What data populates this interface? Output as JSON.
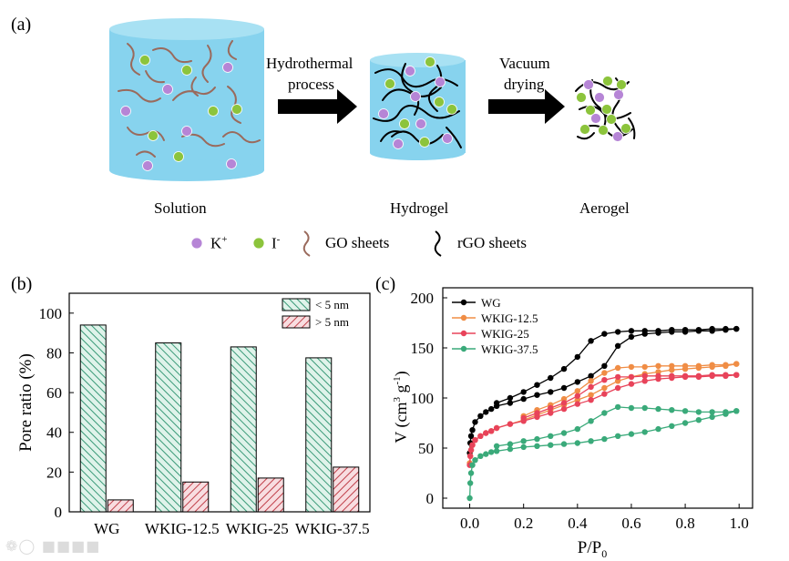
{
  "panel_a": {
    "label": "(a)",
    "arrow1_line1": "Hydrothermal",
    "arrow1_line2": "process",
    "arrow2_line1": "Vacuum",
    "arrow2_line2": "drying",
    "stage1": "Solution",
    "stage2": "Hydrogel",
    "stage3": "Aerogel",
    "legend": {
      "k_ion": "K",
      "k_sup": "+",
      "i_ion": "I",
      "i_sup": "-",
      "go": "GO sheets",
      "rgo": "rGO sheets"
    },
    "colors": {
      "cylinder": "#87d3ee",
      "k_ion": "#b685d6",
      "i_ion": "#8cc43c",
      "go_sheet": "#9a6a5c",
      "rgo_sheet": "#000000"
    }
  },
  "chart_data": [
    {
      "panel": "(b)",
      "type": "bar",
      "categories": [
        "WG",
        "WKIG-12.5",
        "WKIG-25",
        "WKIG-37.5"
      ],
      "series": [
        {
          "name": "< 5 nm",
          "values": [
            94,
            85,
            83,
            77.5
          ],
          "color": "#3a9a78"
        },
        {
          "name": "> 5 nm",
          "values": [
            6,
            15,
            17,
            22.5
          ],
          "color": "#c0404a"
        }
      ],
      "title": "",
      "xlabel": "",
      "ylabel": "Pore ratio (%)",
      "ylim": [
        0,
        110
      ],
      "yticks": [
        0,
        20,
        40,
        60,
        80,
        100
      ],
      "legend_position": "top-right"
    },
    {
      "panel": "(c)",
      "type": "line",
      "title": "",
      "xlabel_main": "P/P",
      "xlabel_sub": "0",
      "ylabel_main": "V  (cm",
      "ylabel_sup1": "3",
      "ylabel_mid": " g",
      "ylabel_sup2": "-1",
      "ylabel_end": ")",
      "xlim": [
        -0.1,
        1.05
      ],
      "ylim": [
        -10,
        210
      ],
      "xticks": [
        0.0,
        0.2,
        0.4,
        0.6,
        0.8,
        1.0
      ],
      "xtick_labels": [
        "0.0",
        "0.2",
        "0.4",
        "0.6",
        "0.8",
        "1.0"
      ],
      "yticks": [
        0,
        50,
        100,
        150,
        200
      ],
      "legend_position": "top-left",
      "series": [
        {
          "name": "WG",
          "color": "#000000",
          "adsorption": {
            "x": [
              0.0,
              0.002,
              0.005,
              0.01,
              0.02,
              0.04,
              0.06,
              0.08,
              0.1,
              0.15,
              0.2,
              0.25,
              0.3,
              0.35,
              0.4,
              0.45,
              0.5,
              0.55,
              0.6,
              0.65,
              0.7,
              0.75,
              0.8,
              0.85,
              0.9,
              0.95,
              0.99
            ],
            "y": [
              45,
              55,
              62,
              68,
              76,
              82,
              86,
              89,
              92,
              95,
              99,
              103,
              106,
              110,
              116,
              122,
              132,
              152,
              161,
              164,
              165,
              166,
              166,
              167,
              167,
              168,
              169
            ]
          },
          "desorption": {
            "x": [
              0.99,
              0.95,
              0.9,
              0.85,
              0.8,
              0.75,
              0.7,
              0.65,
              0.6,
              0.55,
              0.5,
              0.45,
              0.4,
              0.35,
              0.3,
              0.25,
              0.2,
              0.15,
              0.1
            ],
            "y": [
              169,
              169,
              169,
              168,
              168,
              168,
              167,
              167,
              167,
              166,
              164,
              157,
              141,
              129,
              120,
              113,
              106,
              100,
              95
            ]
          }
        },
        {
          "name": "WKIG-12.5",
          "color": "#f08d45",
          "adsorption": {
            "x": [
              0.0,
              0.002,
              0.005,
              0.01,
              0.02,
              0.04,
              0.06,
              0.08,
              0.1,
              0.15,
              0.2,
              0.25,
              0.3,
              0.35,
              0.4,
              0.45,
              0.5,
              0.55,
              0.6,
              0.65,
              0.7,
              0.75,
              0.8,
              0.85,
              0.9,
              0.95,
              0.99
            ],
            "y": [
              35,
              42,
              48,
              53,
              58,
              62,
              65,
              67,
              70,
              74,
              78,
              83,
              88,
              93,
              98,
              103,
              110,
              117,
              121,
              124,
              126,
              128,
              129,
              130,
              131,
              132,
              134
            ]
          },
          "desorption": {
            "x": [
              0.99,
              0.95,
              0.9,
              0.85,
              0.8,
              0.75,
              0.7,
              0.65,
              0.6,
              0.55,
              0.5,
              0.45,
              0.4,
              0.35,
              0.3,
              0.25,
              0.2
            ],
            "y": [
              134,
              133,
              133,
              132,
              132,
              132,
              132,
              131,
              131,
              130,
              125,
              117,
              107,
              99,
              93,
              88,
              82
            ]
          }
        },
        {
          "name": "WKIG-25",
          "color": "#e8435a",
          "adsorption": {
            "x": [
              0.0,
              0.002,
              0.005,
              0.01,
              0.02,
              0.04,
              0.06,
              0.08,
              0.1,
              0.15,
              0.2,
              0.25,
              0.3,
              0.35,
              0.4,
              0.45,
              0.5,
              0.55,
              0.6,
              0.65,
              0.7,
              0.75,
              0.8,
              0.85,
              0.9,
              0.95,
              0.99
            ],
            "y": [
              33,
              42,
              48,
              53,
              58,
              62,
              65,
              67,
              70,
              74,
              77,
              81,
              85,
              89,
              94,
              98,
              104,
              110,
              114,
              117,
              119,
              120,
              121,
              121,
              122,
              122,
              123
            ]
          },
          "desorption": {
            "x": [
              0.99,
              0.95,
              0.9,
              0.85,
              0.8,
              0.75,
              0.7,
              0.65,
              0.6,
              0.55,
              0.5,
              0.45,
              0.4,
              0.35,
              0.3,
              0.25,
              0.2
            ],
            "y": [
              123,
              123,
              123,
              122,
              122,
              122,
              122,
              122,
              121,
              121,
              118,
              111,
              102,
              95,
              90,
              85,
              80
            ]
          }
        },
        {
          "name": "WKIG-37.5",
          "color": "#3aaa7a",
          "adsorption": {
            "x": [
              0.0,
              0.002,
              0.005,
              0.01,
              0.02,
              0.04,
              0.06,
              0.08,
              0.1,
              0.15,
              0.2,
              0.25,
              0.3,
              0.35,
              0.4,
              0.45,
              0.5,
              0.55,
              0.6,
              0.65,
              0.7,
              0.75,
              0.8,
              0.85,
              0.9,
              0.95,
              0.99
            ],
            "y": [
              0,
              15,
              25,
              33,
              38,
              42,
              44,
              46,
              47,
              49,
              51,
              52,
              53,
              54,
              55,
              57,
              59,
              62,
              64,
              66,
              69,
              72,
              75,
              78,
              81,
              84,
              87
            ]
          },
          "desorption": {
            "x": [
              0.99,
              0.95,
              0.9,
              0.85,
              0.8,
              0.75,
              0.7,
              0.65,
              0.6,
              0.55,
              0.5,
              0.45,
              0.4,
              0.35,
              0.3,
              0.25,
              0.2,
              0.15,
              0.1
            ],
            "y": [
              87,
              86,
              86,
              86,
              87,
              88,
              89,
              90,
              90,
              91,
              85,
              77,
              69,
              65,
              62,
              59,
              57,
              54,
              52
            ]
          }
        }
      ]
    }
  ]
}
